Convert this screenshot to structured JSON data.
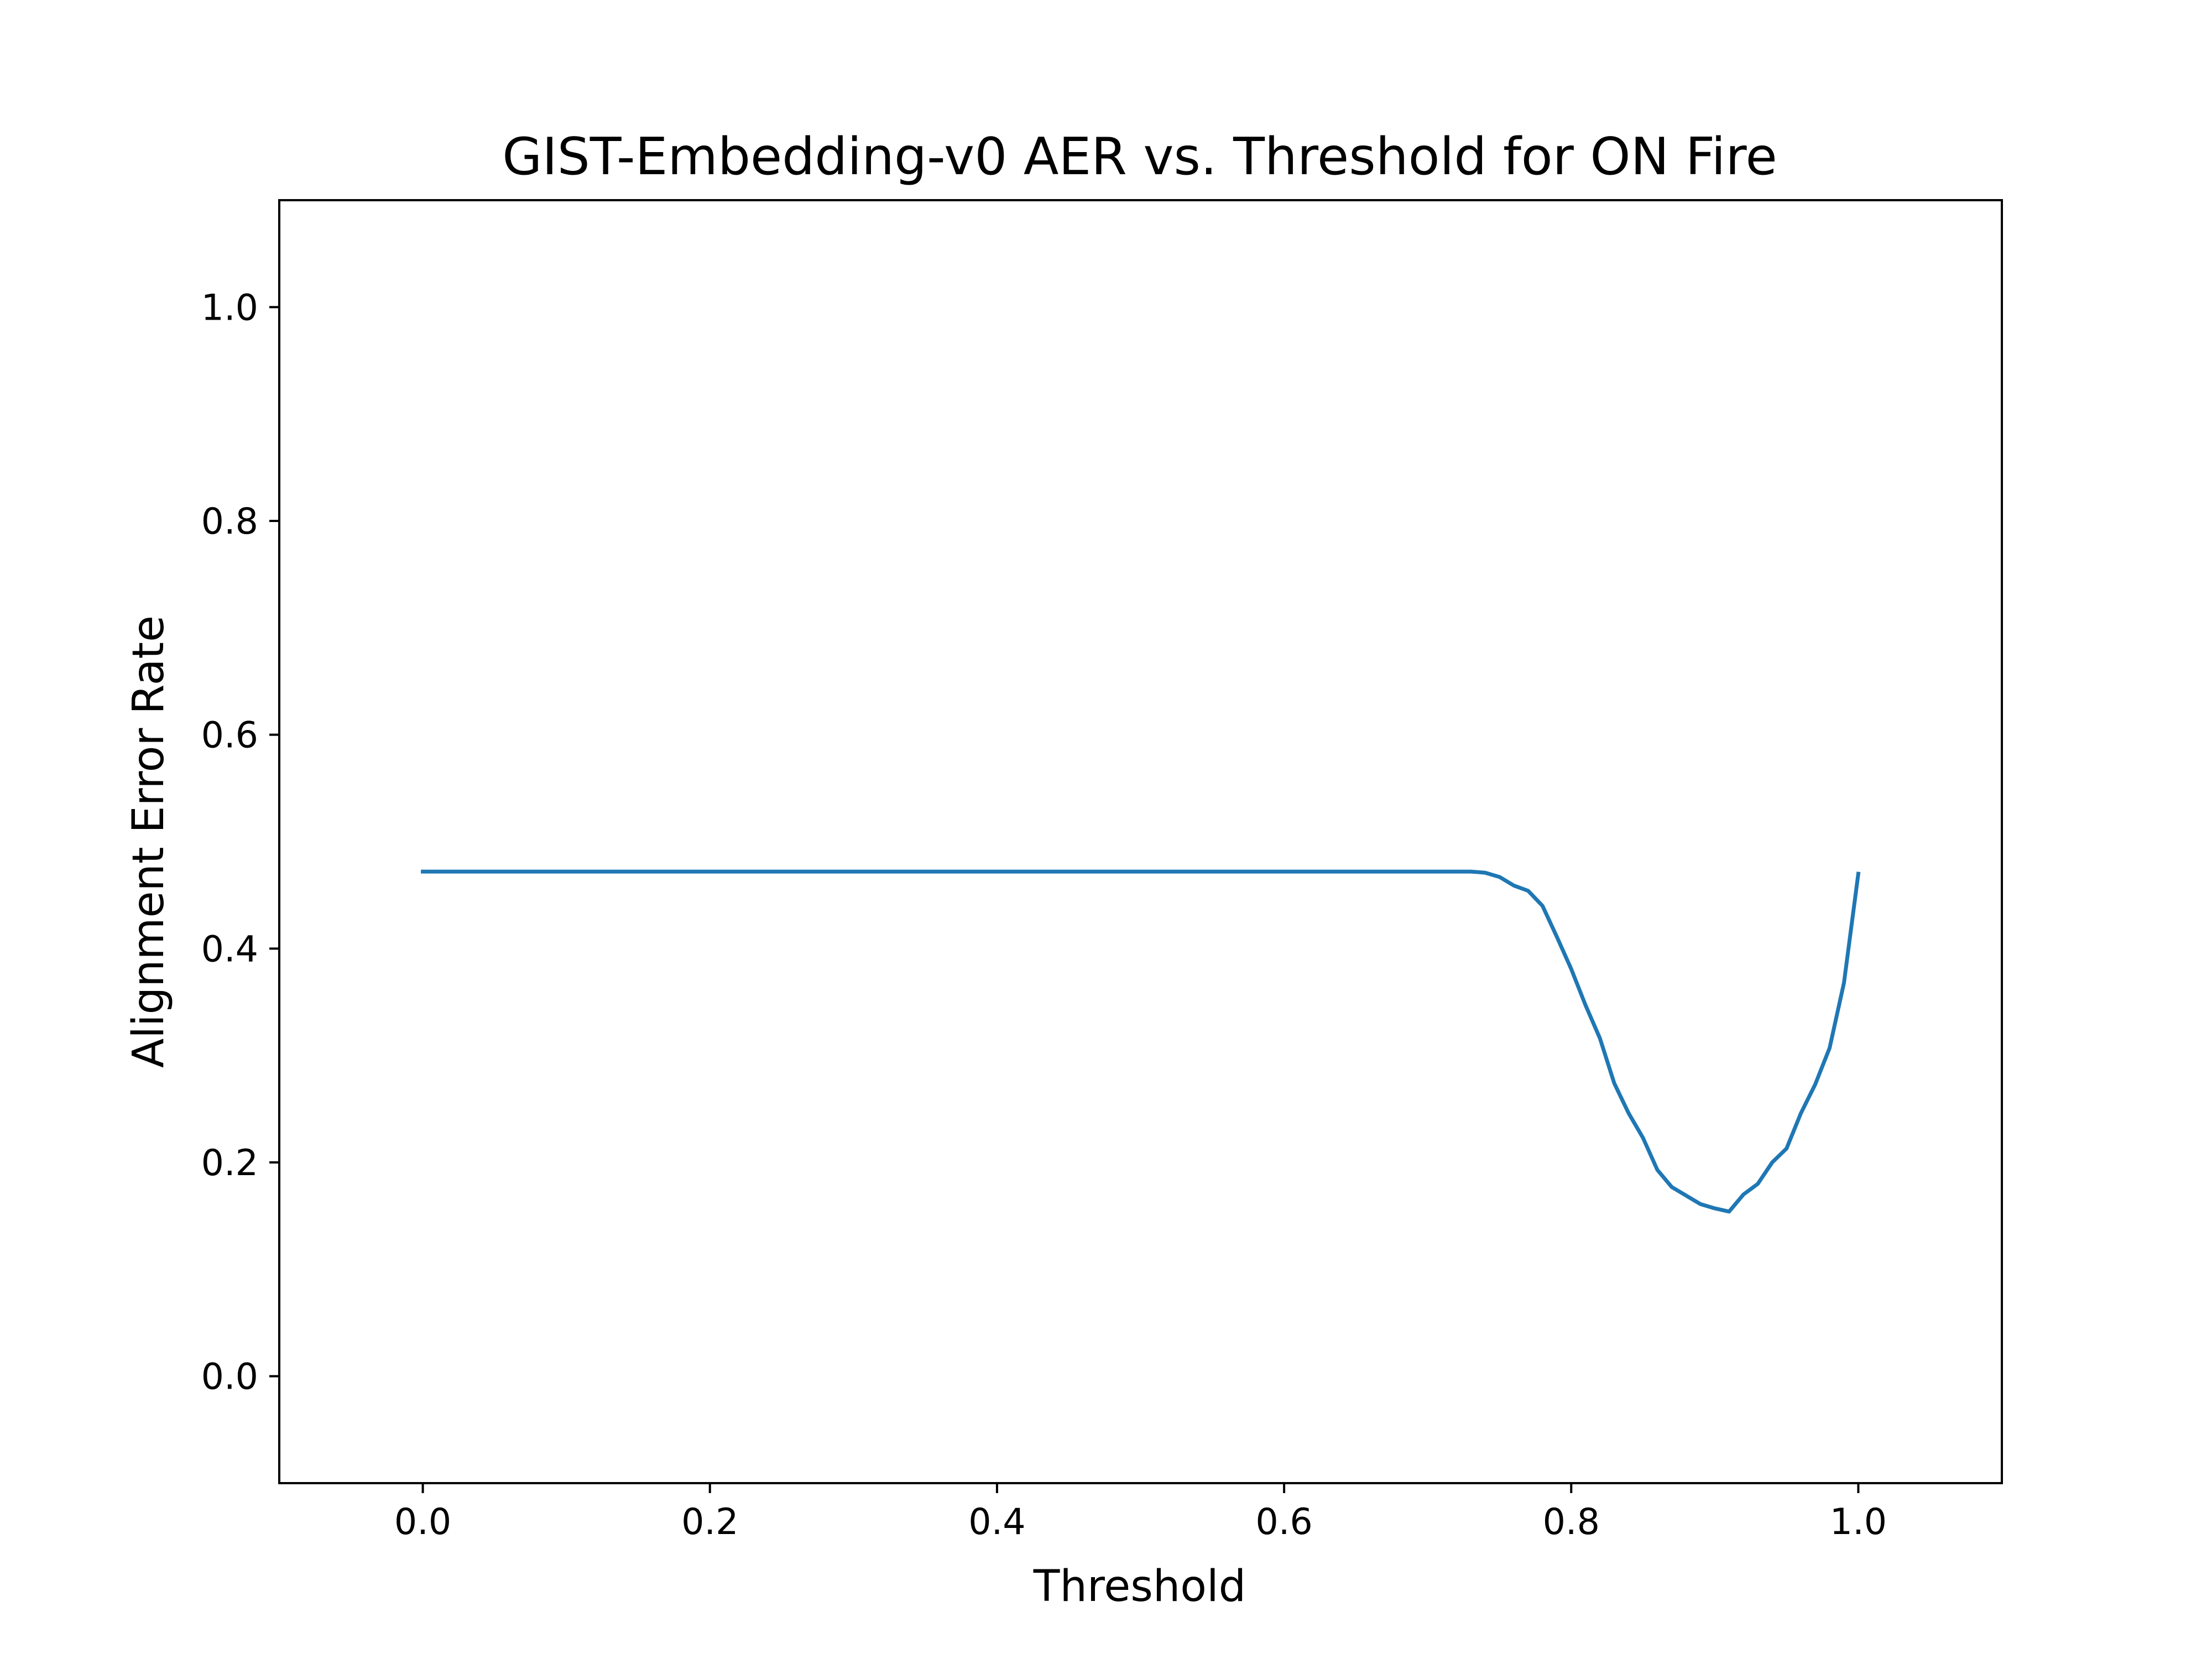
{
  "chart_data": {
    "type": "line",
    "title": "GIST-Embedding-v0 AER vs. Threshold for ON Fire",
    "xlabel": "Threshold",
    "ylabel": "Alignment Error Rate",
    "xlim": [
      -0.1,
      1.1
    ],
    "ylim": [
      -0.1,
      1.1
    ],
    "xticks": [
      0.0,
      0.2,
      0.4,
      0.6,
      0.8,
      1.0
    ],
    "xtick_labels": [
      "0.0",
      "0.2",
      "0.4",
      "0.6",
      "0.8",
      "1.0"
    ],
    "yticks": [
      0.0,
      0.2,
      0.4,
      0.6,
      0.8,
      1.0
    ],
    "ytick_labels": [
      "0.0",
      "0.2",
      "0.4",
      "0.6",
      "0.8",
      "1.0"
    ],
    "grid": false,
    "color": "#1f77b4",
    "series": [
      {
        "x": [
          0.0,
          0.1,
          0.2,
          0.3,
          0.4,
          0.5,
          0.6,
          0.7,
          0.73,
          0.74,
          0.75,
          0.76,
          0.77,
          0.78,
          0.79,
          0.8,
          0.81,
          0.82,
          0.83,
          0.84,
          0.85,
          0.86,
          0.87,
          0.88,
          0.89,
          0.9,
          0.91,
          0.92,
          0.93,
          0.94,
          0.95,
          0.96,
          0.97,
          0.98,
          0.99,
          1.0
        ],
        "y": [
          0.472,
          0.472,
          0.472,
          0.472,
          0.472,
          0.472,
          0.472,
          0.472,
          0.472,
          0.471,
          0.467,
          0.459,
          0.454,
          0.44,
          0.411,
          0.381,
          0.347,
          0.316,
          0.274,
          0.246,
          0.223,
          0.193,
          0.177,
          0.169,
          0.161,
          0.157,
          0.154,
          0.17,
          0.18,
          0.2,
          0.213,
          0.246,
          0.273,
          0.307,
          0.368,
          0.47
        ]
      }
    ]
  }
}
